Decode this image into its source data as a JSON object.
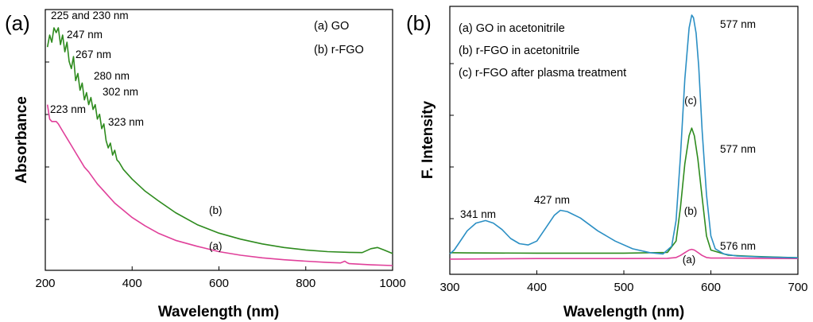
{
  "chart_data": [
    {
      "panel": "(a)",
      "type": "line",
      "xlabel": "Wavelength (nm)",
      "ylabel": "Absorbance",
      "xlim": [
        200,
        1000
      ],
      "ylim": [
        0,
        1
      ],
      "xticks": [
        "200",
        "400",
        "600",
        "800",
        "1000"
      ],
      "colors": [
        "#e0409a",
        "#2e8b1e"
      ],
      "legend": {
        "placement": "top-right",
        "entries": [
          "(a)  GO",
          "(b)  r-FGO"
        ]
      },
      "series": [
        {
          "name": "(a)",
          "label": "(a)",
          "x": [
            205,
            210,
            215,
            220,
            225,
            230,
            240,
            250,
            260,
            270,
            280,
            290,
            300,
            320,
            340,
            360,
            380,
            400,
            430,
            460,
            500,
            550,
            600,
            650,
            700,
            750,
            800,
            850,
            880,
            890,
            895,
            900,
            950,
            1000
          ],
          "y": [
            0.68,
            0.62,
            0.61,
            0.61,
            0.61,
            0.6,
            0.57,
            0.54,
            0.51,
            0.48,
            0.45,
            0.42,
            0.4,
            0.35,
            0.31,
            0.27,
            0.24,
            0.21,
            0.175,
            0.145,
            0.115,
            0.09,
            0.068,
            0.053,
            0.042,
            0.034,
            0.028,
            0.023,
            0.021,
            0.028,
            0.022,
            0.018,
            0.013,
            0.01
          ]
        },
        {
          "name": "(b)",
          "label": "(b)",
          "x": [
            205,
            210,
            215,
            220,
            225,
            230,
            235,
            240,
            245,
            250,
            255,
            260,
            265,
            270,
            275,
            280,
            285,
            290,
            295,
            300,
            305,
            310,
            315,
            320,
            325,
            330,
            335,
            340,
            345,
            350,
            355,
            360,
            365,
            370,
            380,
            400,
            430,
            460,
            500,
            550,
            600,
            650,
            700,
            750,
            800,
            850,
            900,
            930,
            950,
            965,
            980,
            1000
          ],
          "y": [
            0.92,
            0.97,
            0.94,
            1.0,
            0.98,
            1.0,
            0.93,
            0.97,
            0.9,
            0.94,
            0.86,
            0.83,
            0.88,
            0.78,
            0.81,
            0.74,
            0.77,
            0.7,
            0.73,
            0.68,
            0.71,
            0.66,
            0.68,
            0.62,
            0.64,
            0.58,
            0.6,
            0.53,
            0.5,
            0.52,
            0.47,
            0.49,
            0.45,
            0.44,
            0.41,
            0.37,
            0.32,
            0.28,
            0.23,
            0.18,
            0.145,
            0.12,
            0.1,
            0.085,
            0.075,
            0.068,
            0.065,
            0.064,
            0.08,
            0.085,
            0.075,
            0.06
          ]
        }
      ],
      "annotations": [
        {
          "text": "225 and 230 nm",
          "x": 228,
          "y": 1.0
        },
        {
          "text": "247 nm",
          "x": 247,
          "y": 0.97
        },
        {
          "text": "267 nm",
          "x": 267,
          "y": 0.88
        },
        {
          "text": "280 nm",
          "x": 280,
          "y": 0.8
        },
        {
          "text": "302 nm",
          "x": 302,
          "y": 0.73
        },
        {
          "text": "323 nm",
          "x": 323,
          "y": 0.64
        },
        {
          "text": "223 nm",
          "x": 223,
          "y": 0.62
        }
      ]
    },
    {
      "panel": "(b)",
      "type": "line",
      "xlabel": "Wavelength (nm)",
      "ylabel": "F. Intensity",
      "xlim": [
        300,
        700
      ],
      "ylim": [
        0,
        1
      ],
      "xticks": [
        "300",
        "400",
        "500",
        "600",
        "700"
      ],
      "colors": [
        "#e0409a",
        "#2e8b1e",
        "#2b8fc4"
      ],
      "legend": {
        "placement": "top-left",
        "entries": [
          "(a)  GO in acetonitrile",
          "(b)  r-FGO in acetonitrile",
          "(c)  r-FGO after plasma treatment"
        ]
      },
      "series": [
        {
          "name": "(a)",
          "label": "(a)",
          "x": [
            300,
            400,
            500,
            550,
            560,
            565,
            570,
            575,
            578,
            581,
            585,
            590,
            595,
            600,
            620,
            650,
            700
          ],
          "y": [
            0.05,
            0.052,
            0.052,
            0.053,
            0.056,
            0.064,
            0.075,
            0.085,
            0.088,
            0.085,
            0.076,
            0.064,
            0.056,
            0.054,
            0.054,
            0.053,
            0.052
          ]
        },
        {
          "name": "(b)",
          "label": "(b)",
          "x": [
            300,
            320,
            400,
            500,
            550,
            560,
            565,
            570,
            575,
            578,
            581,
            585,
            590,
            595,
            600,
            620,
            650,
            700
          ],
          "y": [
            0.075,
            0.074,
            0.073,
            0.073,
            0.076,
            0.12,
            0.25,
            0.42,
            0.53,
            0.56,
            0.53,
            0.44,
            0.29,
            0.14,
            0.085,
            0.065,
            0.06,
            0.055
          ]
        },
        {
          "name": "(c)",
          "label": "(c)",
          "x": [
            300,
            305,
            310,
            320,
            330,
            341,
            350,
            360,
            370,
            380,
            390,
            400,
            410,
            420,
            427,
            435,
            450,
            470,
            490,
            510,
            530,
            545,
            555,
            560,
            565,
            570,
            575,
            578,
            580,
            583,
            586,
            590,
            595,
            600,
            605,
            615,
            630,
            660,
            700
          ],
          "y": [
            0.07,
            0.085,
            0.11,
            0.16,
            0.19,
            0.2,
            0.19,
            0.165,
            0.13,
            0.11,
            0.105,
            0.12,
            0.17,
            0.22,
            0.24,
            0.235,
            0.21,
            0.16,
            0.12,
            0.09,
            0.075,
            0.07,
            0.1,
            0.2,
            0.45,
            0.75,
            0.95,
            1.0,
            0.99,
            0.93,
            0.8,
            0.55,
            0.3,
            0.14,
            0.09,
            0.07,
            0.062,
            0.058,
            0.055
          ]
        }
      ],
      "annotations": [
        {
          "text": "577 nm",
          "x": 577,
          "y": 1.0
        },
        {
          "text": "577 nm",
          "x": 577,
          "y": 0.56
        },
        {
          "text": "576 nm",
          "x": 576,
          "y": 0.088
        },
        {
          "text": "341 nm",
          "x": 341,
          "y": 0.2
        },
        {
          "text": "427 nm",
          "x": 427,
          "y": 0.24
        }
      ]
    }
  ]
}
